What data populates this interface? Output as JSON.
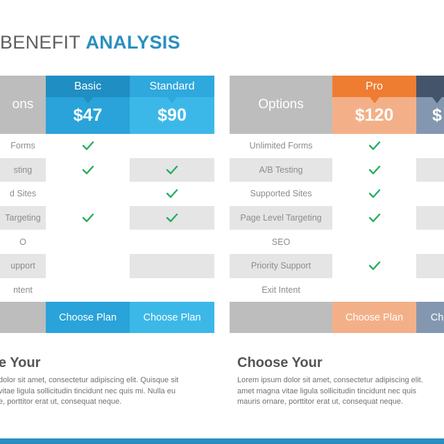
{
  "title": {
    "part1": "BENEFIT",
    "part2": "ANALYSIS"
  },
  "colors": {
    "basic_head": "#1f8ec2",
    "basic_body": "#29a3d9",
    "standard_head": "#2ea8dd",
    "standard_body": "#3cb8e8",
    "pro_head": "#ee7d31",
    "pro_body": "#f3b088",
    "enterprise_head": "#44546a",
    "enterprise_body": "#8497b0",
    "check": "#27ae60"
  },
  "left": {
    "options_label": "ons",
    "plans": [
      {
        "name": "Basic",
        "price": "$47",
        "choose": "Choose Plan"
      },
      {
        "name": "Standard",
        "price": "$90",
        "choose": "Choose Plan"
      }
    ],
    "features": [
      {
        "label": "Forms",
        "checks": [
          true,
          false
        ]
      },
      {
        "label": "sting",
        "checks": [
          true,
          true
        ]
      },
      {
        "label": "d Sites",
        "checks": [
          false,
          true
        ]
      },
      {
        "label": "Targeting",
        "checks": [
          true,
          true
        ]
      },
      {
        "label": "O",
        "checks": [
          false,
          false
        ]
      },
      {
        "label": "upport",
        "checks": [
          false,
          false
        ]
      },
      {
        "label": "ntent",
        "checks": [
          false,
          false
        ]
      }
    ],
    "heading": "e Your",
    "paragraph": [
      "dolor sit amet, consectetur adipiscing elit. Quisque sit",
      "vitae ligula sollicitudin tincidunt nec quis mi. Nulla eu",
      "e, porttitor erat ut, consequat neque."
    ]
  },
  "right": {
    "options_label": "Options",
    "plans": [
      {
        "name": "Pro",
        "price": "$120",
        "choose": "Choose Plan"
      },
      {
        "name": "",
        "price": "$",
        "choose": "Ch"
      }
    ],
    "features": [
      {
        "label": "Unlimited Forms",
        "checks": [
          true,
          false
        ]
      },
      {
        "label": "A/B Testing",
        "checks": [
          true,
          false
        ]
      },
      {
        "label": "Supported  Sites",
        "checks": [
          true,
          false
        ]
      },
      {
        "label": "Page Level Targeting",
        "checks": [
          true,
          false
        ]
      },
      {
        "label": "SEO",
        "checks": [
          false,
          false
        ]
      },
      {
        "label": "Priority Support",
        "checks": [
          true,
          false
        ]
      },
      {
        "label": "Exit Intent",
        "checks": [
          false,
          false
        ]
      }
    ],
    "heading": "Choose Your",
    "paragraph": [
      "Lorem ipsum dolor sit amet, consectetur adipiscing elit.",
      "amet magna vitae ligula sollicitudin tincidunt nec quis",
      "mauris ornare, porttitor erat ut, consequat neque."
    ]
  }
}
